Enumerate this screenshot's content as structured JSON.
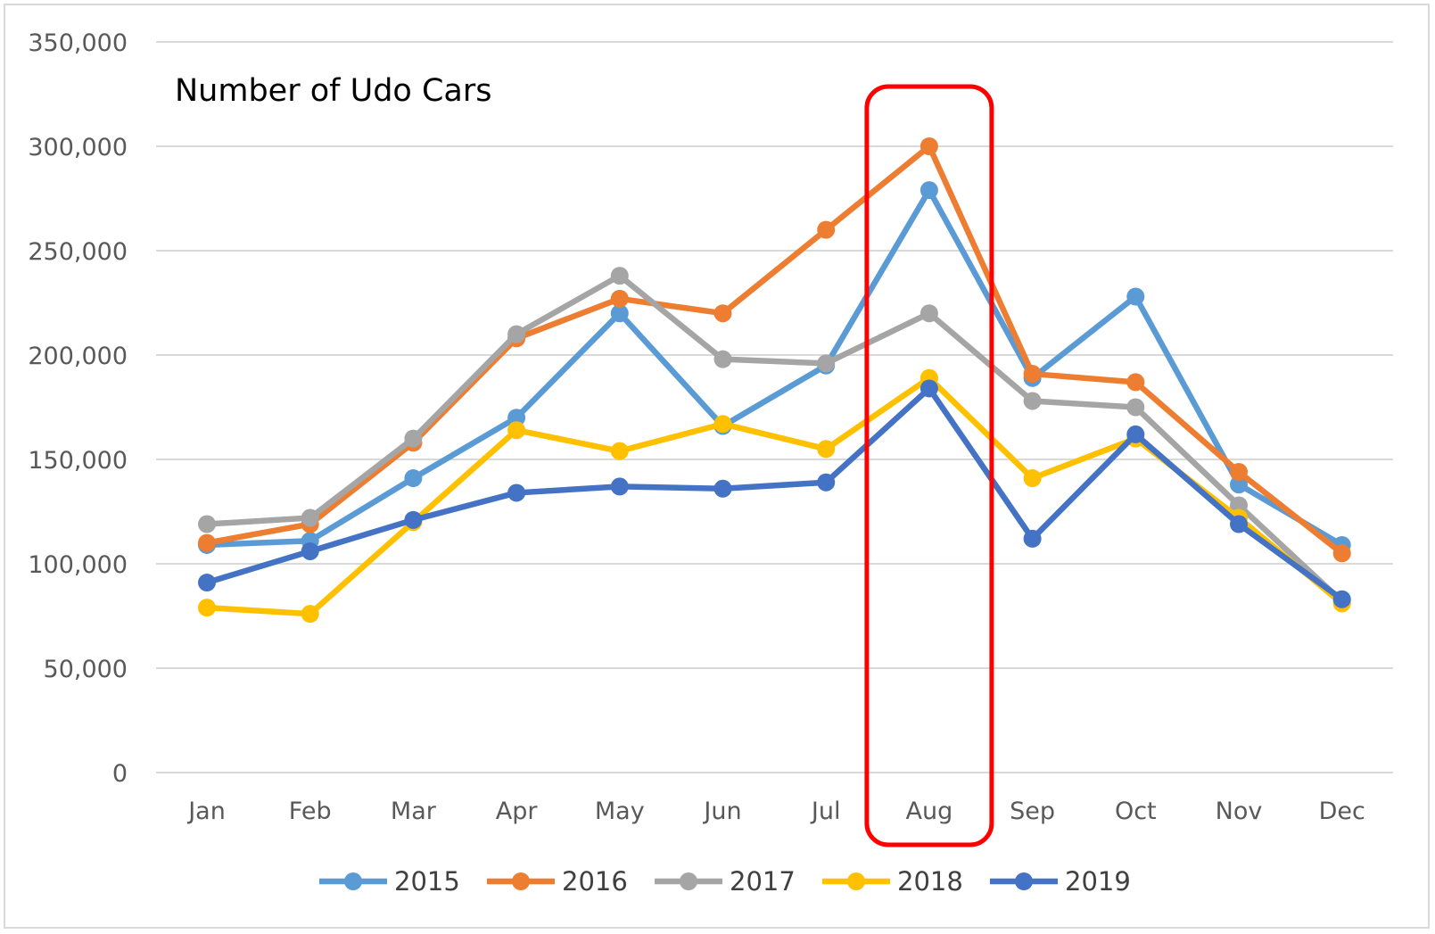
{
  "chart_data": {
    "type": "line",
    "title": "Number of Udo Cars",
    "xlabel": "",
    "ylabel": "",
    "categories": [
      "Jan",
      "Feb",
      "Mar",
      "Apr",
      "May",
      "Jun",
      "Jul",
      "Aug",
      "Sep",
      "Oct",
      "Nov",
      "Dec"
    ],
    "ylim": [
      0,
      350000
    ],
    "yticks": [
      0,
      50000,
      100000,
      150000,
      200000,
      250000,
      300000,
      350000
    ],
    "ytick_labels": [
      "0",
      "50,000",
      "100,000",
      "150,000",
      "200,000",
      "250,000",
      "300,000",
      "350,000"
    ],
    "grid": true,
    "legend_position": "bottom",
    "highlight": {
      "category": "Aug",
      "color": "#ff0000"
    },
    "series": [
      {
        "name": "2015",
        "color": "#5b9bd5",
        "values": [
          109000,
          111000,
          141000,
          170000,
          220000,
          166000,
          195000,
          279000,
          189000,
          228000,
          138000,
          109000
        ]
      },
      {
        "name": "2016",
        "color": "#ed7d31",
        "values": [
          110000,
          119000,
          158000,
          208000,
          227000,
          220000,
          260000,
          300000,
          191000,
          187000,
          144000,
          105000
        ]
      },
      {
        "name": "2017",
        "color": "#a5a5a5",
        "values": [
          119000,
          122000,
          160000,
          210000,
          238000,
          198000,
          196000,
          220000,
          178000,
          175000,
          128000,
          82000
        ]
      },
      {
        "name": "2018",
        "color": "#ffc000",
        "values": [
          79000,
          76000,
          120000,
          164000,
          154000,
          167000,
          155000,
          189000,
          141000,
          160000,
          122000,
          81000
        ]
      },
      {
        "name": "2019",
        "color": "#4472c4",
        "values": [
          91000,
          106000,
          121000,
          134000,
          137000,
          136000,
          139000,
          184000,
          112000,
          162000,
          119000,
          83000
        ]
      }
    ]
  }
}
